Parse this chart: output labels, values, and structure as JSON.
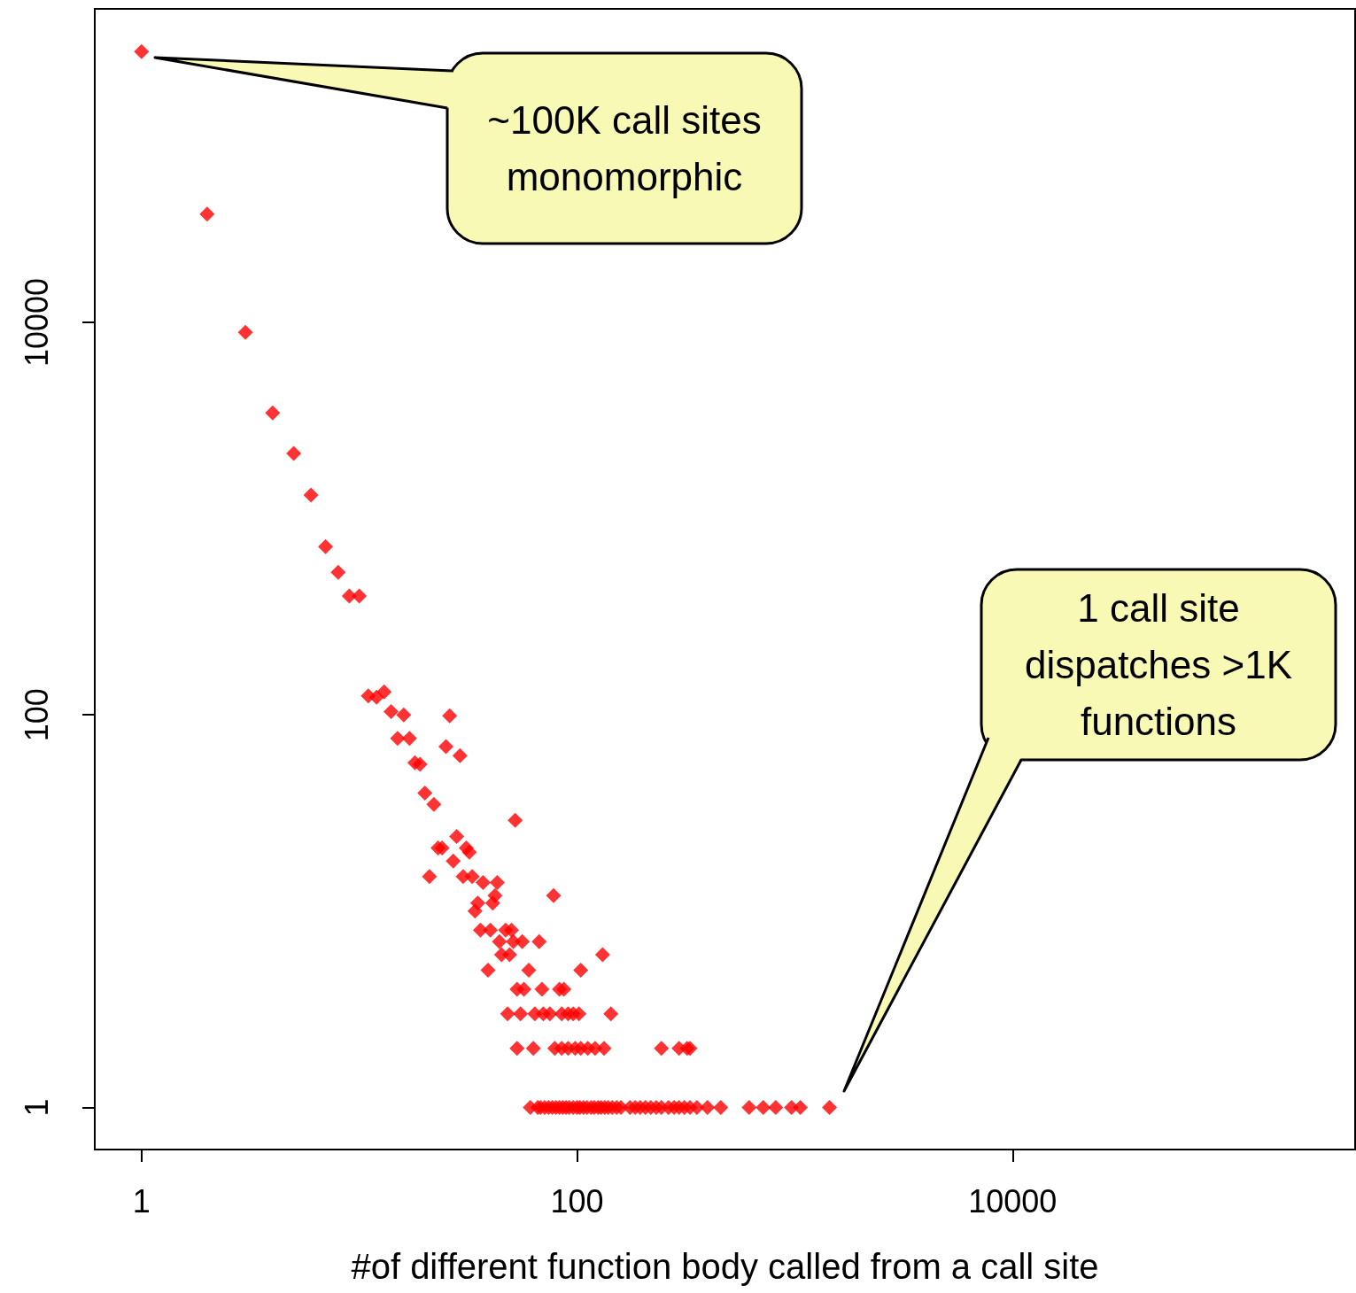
{
  "chart_data": {
    "type": "scatter",
    "xlabel": "#of different function body called from a call site",
    "x": [
      1,
      2,
      3,
      4,
      5,
      6,
      7,
      8,
      9,
      10,
      11,
      12,
      13,
      14,
      16,
      26,
      15,
      17,
      25,
      29,
      18,
      19,
      20,
      22,
      52,
      28,
      23,
      24,
      31,
      32,
      27,
      21,
      30,
      33,
      37,
      43,
      78,
      42,
      35,
      41,
      34,
      36,
      40,
      47,
      50,
      44,
      51,
      56,
      67,
      45,
      49,
      131,
      39,
      60,
      104,
      53,
      57,
      69,
      83,
      87,
      48,
      55,
      64,
      70,
      75,
      85,
      91,
      96,
      102,
      143,
      53,
      63,
      79,
      85,
      91,
      98,
      104,
      112,
      121,
      133,
      244,
      294,
      320,
      330,
      61,
      66,
      68,
      71,
      74,
      77,
      80,
      83,
      86,
      89,
      92,
      96,
      100,
      103,
      107,
      111,
      116,
      120,
      125,
      129,
      134,
      139,
      145,
      152,
      159,
      175,
      185,
      195,
      206,
      218,
      231,
      244,
      263,
      279,
      294,
      311,
      330,
      355,
      397,
      457,
      617,
      716,
      817,
      966,
      1060,
      1443
    ],
    "series": [
      {
        "color": "#ff0000",
        "values": [
          240000,
          35600,
          8900,
          3460,
          2150,
          1320,
          720,
          533,
          403,
          403,
          125,
          123,
          131,
          104,
          100,
          99,
          76,
          76,
          69,
          62,
          57,
          56,
          40,
          35,
          29,
          24,
          21,
          21,
          21,
          20,
          18,
          15,
          15,
          15,
          14,
          14,
          12,
          12,
          11,
          11,
          10,
          8,
          8,
          8,
          8,
          7,
          7,
          7,
          7,
          6,
          6,
          6,
          5,
          5,
          5,
          4,
          4,
          4,
          4,
          4,
          3,
          3,
          3,
          3,
          3,
          3,
          3,
          3,
          3,
          3,
          2,
          2,
          2,
          2,
          2,
          2,
          2,
          2,
          2,
          2,
          2,
          2,
          2,
          2,
          1,
          1,
          1,
          1,
          1,
          1,
          1,
          1,
          1,
          1,
          1,
          1,
          1,
          1,
          1,
          1,
          1,
          1,
          1,
          1,
          1,
          1,
          1,
          1,
          1,
          1,
          1,
          1,
          1,
          1,
          1,
          1,
          1,
          1,
          1,
          1,
          1,
          1,
          1,
          1,
          1,
          1,
          1,
          1,
          1,
          1
        ]
      }
    ],
    "log": "xy",
    "xlim": [
      0.61,
      374000
    ],
    "ylim": [
      0.61,
      396000
    ],
    "xticks": [
      1,
      100,
      10000
    ],
    "yticks": [
      1,
      100,
      10000
    ],
    "marker": "diamond",
    "grid": false,
    "annotations": [
      "~100K call sites\nmonomorphic",
      "1 call site\ndispatches >1K\nfunctions"
    ]
  }
}
